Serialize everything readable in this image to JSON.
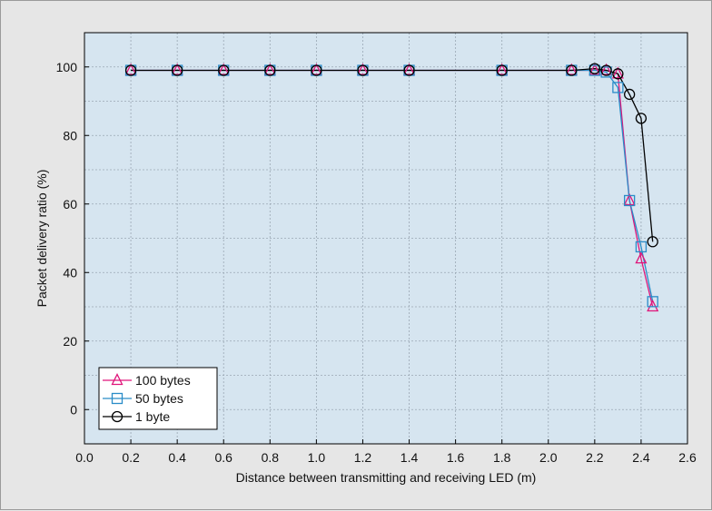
{
  "chart_data": {
    "type": "line",
    "xlabel": "Distance between transmitting and receiving LED (m)",
    "ylabel": "Packet delivery ratio (%)",
    "xlim": [
      0.0,
      2.6
    ],
    "ylim": [
      -10,
      110
    ],
    "xticks": [
      "0.0",
      "0.2",
      "0.4",
      "0.6",
      "0.8",
      "1.0",
      "1.2",
      "1.4",
      "1.6",
      "1.8",
      "2.0",
      "2.2",
      "2.4",
      "2.6"
    ],
    "yticks": [
      "0",
      "20",
      "40",
      "60",
      "80",
      "100"
    ],
    "grid": true,
    "legend_position": "bottom-left",
    "colors": {
      "plot_background": "#d6e5f0",
      "grid": "#9aa7b3",
      "frame": "#000000"
    },
    "series": [
      {
        "name": "100 bytes",
        "marker": "triangle",
        "color": "#e0157a",
        "x": [
          0.2,
          0.4,
          0.6,
          0.8,
          1.0,
          1.2,
          1.4,
          1.8,
          2.1,
          2.2,
          2.25,
          2.3,
          2.35,
          2.4,
          2.45
        ],
        "y": [
          99,
          99,
          99,
          99,
          99,
          99,
          99,
          99,
          99,
          99,
          99,
          98,
          61,
          44,
          30
        ]
      },
      {
        "name": "50 bytes",
        "marker": "square",
        "color": "#2a8cc8",
        "x": [
          0.2,
          0.4,
          0.6,
          0.8,
          1.0,
          1.2,
          1.4,
          1.8,
          2.1,
          2.2,
          2.25,
          2.3,
          2.35,
          2.4,
          2.45
        ],
        "y": [
          99,
          99,
          99,
          99,
          99,
          99,
          99,
          99,
          99,
          99,
          98.5,
          94,
          61,
          47.5,
          31.5
        ]
      },
      {
        "name": "1 byte",
        "marker": "circle",
        "color": "#000000",
        "x": [
          0.2,
          0.4,
          0.6,
          0.8,
          1.0,
          1.2,
          1.4,
          1.8,
          2.1,
          2.2,
          2.25,
          2.3,
          2.35,
          2.4,
          2.45
        ],
        "y": [
          99,
          99,
          99,
          99,
          99,
          99,
          99,
          99,
          99,
          99.5,
          99,
          98,
          92,
          85,
          49
        ]
      }
    ]
  }
}
